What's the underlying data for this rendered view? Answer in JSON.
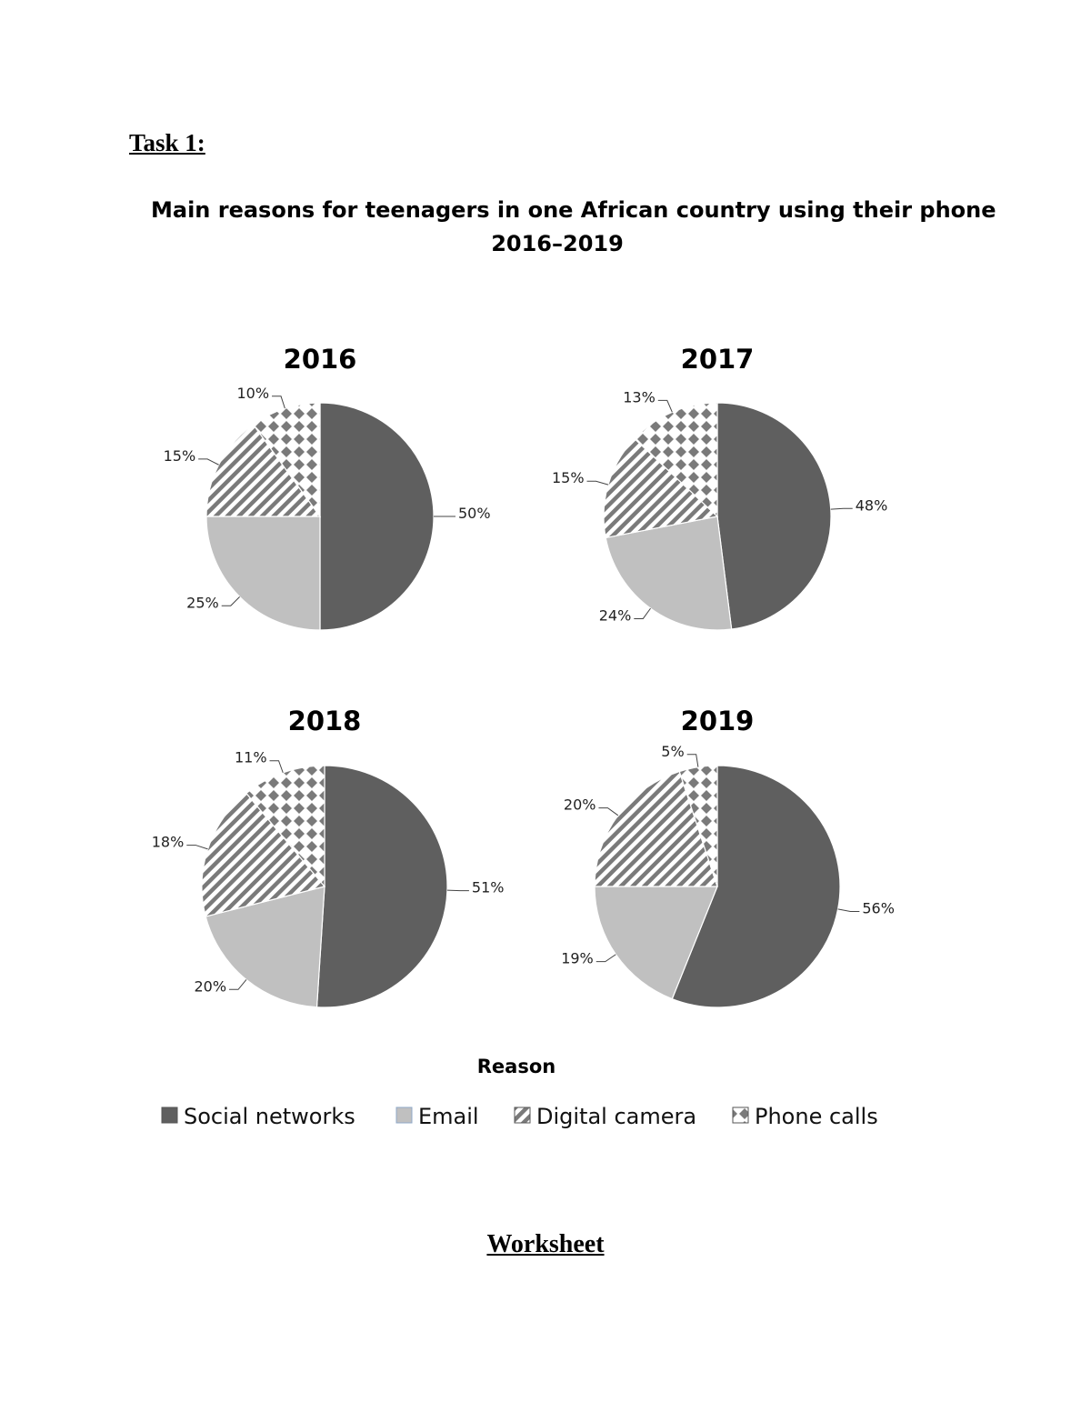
{
  "task_heading": "Task 1:",
  "worksheet_heading": "Worksheet",
  "chart_data": {
    "type": "pie",
    "title": "Main reasons for teenagers in one African country using their phone",
    "subtitle": "2016–2019",
    "legend_title": "Reason",
    "legend_position": "bottom",
    "categories": [
      "Social networks",
      "Email",
      "Digital camera",
      "Phone calls"
    ],
    "colors": [
      "#5f5f5f",
      "#c0c0c0",
      "pattern-diagonal-stripes",
      "pattern-diamond-checks"
    ],
    "series": [
      {
        "name": "2016",
        "values": [
          50,
          25,
          15,
          10
        ],
        "labels": [
          "50%",
          "25%",
          "15%",
          "10%"
        ]
      },
      {
        "name": "2017",
        "values": [
          48,
          24,
          15,
          13
        ],
        "labels": [
          "48%",
          "24%",
          "15%",
          "13%"
        ]
      },
      {
        "name": "2018",
        "values": [
          51,
          20,
          18,
          11
        ],
        "labels": [
          "51%",
          "20%",
          "18%",
          "11%"
        ]
      },
      {
        "name": "2019",
        "values": [
          56,
          19,
          20,
          5
        ],
        "labels": [
          "56%",
          "19%",
          "20%",
          "5%"
        ]
      }
    ]
  }
}
